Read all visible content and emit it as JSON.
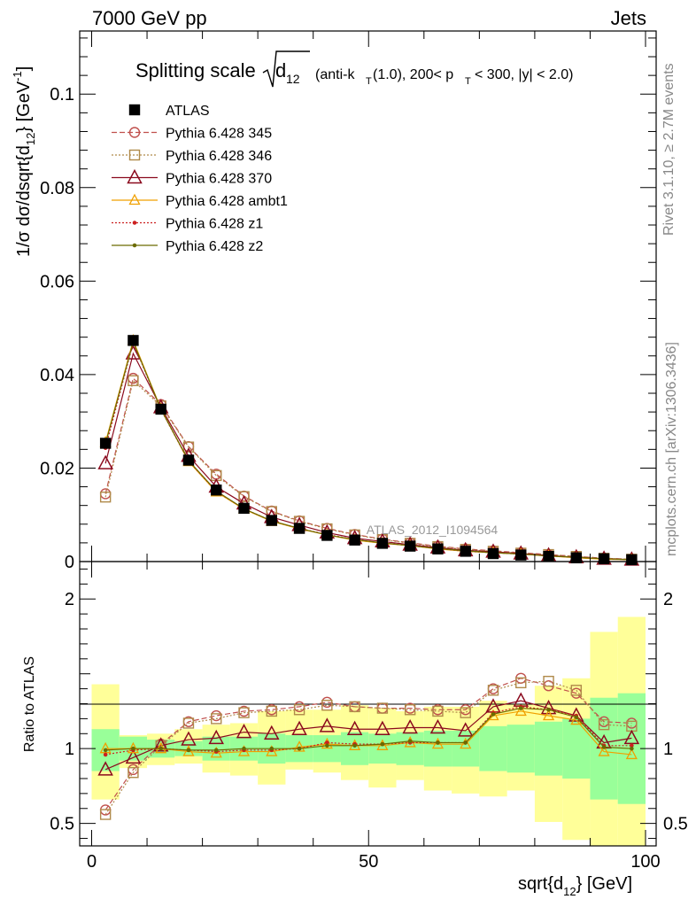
{
  "header": {
    "left": "7000 GeV pp",
    "right": "Jets"
  },
  "side": {
    "rivet": "Rivet 3.1.10, ≥ 2.7M events",
    "mcplots": "mcplots.cern.ch [arXiv:1306.3436]"
  },
  "watermark": "ATLAS_2012_I1094564",
  "colors": {
    "data": "#000000",
    "p345": "#c0504d",
    "p346": "#b08a4a",
    "p370": "#8b0a1e",
    "ambt1": "#f0a000",
    "z1": "#cc2020",
    "z2": "#6b6b00",
    "band_inner": "#99ff99",
    "band_outer": "#ffff99"
  },
  "chart_data": [
    {
      "type": "line",
      "panel": "main",
      "title_main": "Splitting scale",
      "title_sqrt": "d",
      "title_sqrt_sub": "12",
      "title_rest": "(anti-k",
      "title_rest_sub": "T",
      "title_rest2": "(1.0), 200< p",
      "title_rest2_sub": "T",
      "title_rest3": "< 300, |y| < 2.0)",
      "ylabel": "1/σ dσ/dsqrt{d",
      "ylabel_sub": "12",
      "ylabel_end": "} [GeV",
      "ylabel_sup": "-1",
      "ylabel_close": "]",
      "xlim": [
        0,
        100
      ],
      "ylim": [
        0,
        0.1135
      ],
      "yticks": [
        0,
        0.02,
        0.04,
        0.06,
        0.08,
        0.1
      ],
      "ytick_labels": [
        "0",
        "0.02",
        "0.04",
        "0.06",
        "0.08",
        "0.1"
      ],
      "x": [
        2.5,
        7.5,
        12.5,
        17.5,
        22.5,
        27.5,
        32.5,
        37.5,
        42.5,
        47.5,
        52.5,
        57.5,
        62.5,
        67.5,
        72.5,
        77.5,
        82.5,
        87.5,
        92.5,
        97.5
      ],
      "legend": [
        "ATLAS",
        "Pythia 6.428 345",
        "Pythia 6.428 346",
        "Pythia 6.428 370",
        "Pythia 6.428 ambt1",
        "Pythia 6.428 z1",
        "Pythia 6.428 z2"
      ],
      "series": [
        {
          "name": "ATLAS",
          "key": "data",
          "values": [
            0.0253,
            0.0473,
            0.0326,
            0.0217,
            0.0153,
            0.0114,
            0.0088,
            0.0071,
            0.0056,
            0.0046,
            0.0039,
            0.0033,
            0.0027,
            0.0022,
            0.0017,
            0.0014,
            0.0011,
            0.0008,
            0.0006,
            0.0004
          ]
        },
        {
          "name": "Pythia 6.428 345",
          "key": "p345",
          "values": [
            0.0145,
            0.0392,
            0.0336,
            0.0246,
            0.0187,
            0.014,
            0.0108,
            0.0087,
            0.0071,
            0.0058,
            0.0048,
            0.004,
            0.0033,
            0.0027,
            0.0023,
            0.0019,
            0.0015,
            0.0011,
            0.0007,
            0.0005
          ]
        },
        {
          "name": "Pythia 6.428 346",
          "key": "p346",
          "values": [
            0.0138,
            0.0387,
            0.0333,
            0.0245,
            0.0184,
            0.0139,
            0.0107,
            0.0086,
            0.007,
            0.0057,
            0.0047,
            0.0039,
            0.0032,
            0.0026,
            0.0022,
            0.0018,
            0.0015,
            0.0011,
            0.0007,
            0.0005
          ]
        },
        {
          "name": "Pythia 6.428 370",
          "key": "p370",
          "values": [
            0.021,
            0.0445,
            0.033,
            0.0226,
            0.016,
            0.0124,
            0.0095,
            0.0078,
            0.0062,
            0.005,
            0.0043,
            0.0036,
            0.003,
            0.0024,
            0.0021,
            0.0017,
            0.0013,
            0.0009,
            0.0006,
            0.0004
          ]
        },
        {
          "name": "Pythia 6.428 ambt1",
          "key": "ambt1",
          "values": [
            0.0255,
            0.0473,
            0.0327,
            0.0214,
            0.0149,
            0.0112,
            0.0086,
            0.007,
            0.0057,
            0.0046,
            0.0039,
            0.0034,
            0.0027,
            0.0022,
            0.0019,
            0.0016,
            0.0012,
            0.0008,
            0.0005,
            0.0004
          ]
        },
        {
          "name": "Pythia 6.428 z1",
          "key": "z1",
          "values": [
            0.0243,
            0.0468,
            0.0325,
            0.0215,
            0.015,
            0.0113,
            0.0087,
            0.0071,
            0.0058,
            0.0047,
            0.004,
            0.0034,
            0.0028,
            0.0022,
            0.0019,
            0.0016,
            0.0012,
            0.0009,
            0.0006,
            0.0004
          ]
        },
        {
          "name": "Pythia 6.428 z2",
          "key": "z2",
          "values": [
            0.0252,
            0.047,
            0.0326,
            0.0216,
            0.0151,
            0.0113,
            0.0087,
            0.0071,
            0.0057,
            0.0047,
            0.004,
            0.0034,
            0.0028,
            0.0023,
            0.0019,
            0.0016,
            0.0012,
            0.0009,
            0.0006,
            0.0004
          ]
        }
      ]
    },
    {
      "type": "line",
      "panel": "ratio",
      "ylabel": "Ratio to ATLAS",
      "xlabel": "sqrt{d",
      "xlabel_sub": "12",
      "xlabel_end": "} [GeV]",
      "xlim": [
        -2.5,
        102.5
      ],
      "ylim": [
        0.35,
        2.25
      ],
      "yticks": [
        0.5,
        1,
        2
      ],
      "ytick_labels": [
        "0.5",
        "1",
        "2"
      ],
      "xticks": [
        0,
        50,
        100
      ],
      "xtick_labels": [
        "0",
        "50",
        "100"
      ],
      "x": [
        2.5,
        7.5,
        12.5,
        17.5,
        22.5,
        27.5,
        32.5,
        37.5,
        42.5,
        47.5,
        52.5,
        57.5,
        62.5,
        67.5,
        72.5,
        77.5,
        82.5,
        87.5,
        92.5,
        97.5
      ],
      "band_inner": [
        [
          0.85,
          1.13
        ],
        [
          0.92,
          1.08
        ],
        [
          0.94,
          1.06
        ],
        [
          0.95,
          1.05
        ],
        [
          0.92,
          1.08
        ],
        [
          0.92,
          1.08
        ],
        [
          0.9,
          1.1
        ],
        [
          0.91,
          1.09
        ],
        [
          0.91,
          1.09
        ],
        [
          0.89,
          1.11
        ],
        [
          0.9,
          1.1
        ],
        [
          0.89,
          1.11
        ],
        [
          0.88,
          1.12
        ],
        [
          0.88,
          1.12
        ],
        [
          0.85,
          1.15
        ],
        [
          0.84,
          1.16
        ],
        [
          0.82,
          1.18
        ],
        [
          0.8,
          1.2
        ],
        [
          0.66,
          1.34
        ],
        [
          0.63,
          1.37
        ]
      ],
      "band_outer": [
        [
          0.66,
          1.43
        ],
        [
          0.87,
          1.09
        ],
        [
          0.89,
          1.1
        ],
        [
          0.9,
          1.13
        ],
        [
          0.84,
          1.16
        ],
        [
          0.82,
          1.17
        ],
        [
          0.76,
          1.25
        ],
        [
          0.86,
          1.26
        ],
        [
          0.84,
          1.26
        ],
        [
          0.79,
          1.29
        ],
        [
          0.74,
          1.27
        ],
        [
          0.79,
          1.25
        ],
        [
          0.72,
          1.28
        ],
        [
          0.7,
          1.28
        ],
        [
          0.68,
          1.32
        ],
        [
          0.72,
          1.3
        ],
        [
          0.51,
          1.42
        ],
        [
          0.39,
          1.47
        ],
        [
          0.35,
          1.78
        ],
        [
          0.35,
          1.88
        ]
      ],
      "series": [
        {
          "name": "Pythia 6.428 345",
          "key": "p345",
          "values": [
            0.59,
            0.86,
            1.03,
            1.18,
            1.22,
            1.25,
            1.26,
            1.28,
            1.31,
            1.28,
            1.27,
            1.27,
            1.26,
            1.26,
            1.4,
            1.47,
            1.42,
            1.37,
            1.18,
            1.17
          ]
        },
        {
          "name": "Pythia 6.428 346",
          "key": "p346",
          "values": [
            0.56,
            0.84,
            1.02,
            1.17,
            1.2,
            1.24,
            1.25,
            1.26,
            1.29,
            1.28,
            1.27,
            1.26,
            1.25,
            1.24,
            1.39,
            1.44,
            1.45,
            1.39,
            1.16,
            1.15
          ]
        },
        {
          "name": "Pythia 6.428 370",
          "key": "p370",
          "values": [
            0.86,
            0.94,
            1.02,
            1.06,
            1.07,
            1.11,
            1.1,
            1.13,
            1.15,
            1.13,
            1.13,
            1.14,
            1.14,
            1.12,
            1.28,
            1.32,
            1.27,
            1.22,
            1.04,
            1.07
          ]
        },
        {
          "name": "Pythia 6.428 ambt1",
          "key": "ambt1",
          "values": [
            1.0,
            1.0,
            1.0,
            0.98,
            0.97,
            0.98,
            0.98,
            1.01,
            1.03,
            1.02,
            1.02,
            1.04,
            1.03,
            1.03,
            1.22,
            1.25,
            1.22,
            1.19,
            0.98,
            0.96
          ]
        },
        {
          "name": "Pythia 6.428 z1",
          "key": "z1",
          "values": [
            0.96,
            0.99,
            1.0,
            0.99,
            0.98,
            0.99,
            0.99,
            1.0,
            1.04,
            1.03,
            1.03,
            1.04,
            1.04,
            1.04,
            1.24,
            1.28,
            1.26,
            1.22,
            1.02,
            1.02
          ]
        },
        {
          "name": "Pythia 6.428 z2",
          "key": "z2",
          "values": [
            0.99,
            1.0,
            1.0,
            0.99,
            0.99,
            1.0,
            1.0,
            1.0,
            1.02,
            1.02,
            1.03,
            1.05,
            1.04,
            1.04,
            1.23,
            1.27,
            1.26,
            1.21,
            1.01,
            1.0
          ]
        }
      ]
    }
  ]
}
